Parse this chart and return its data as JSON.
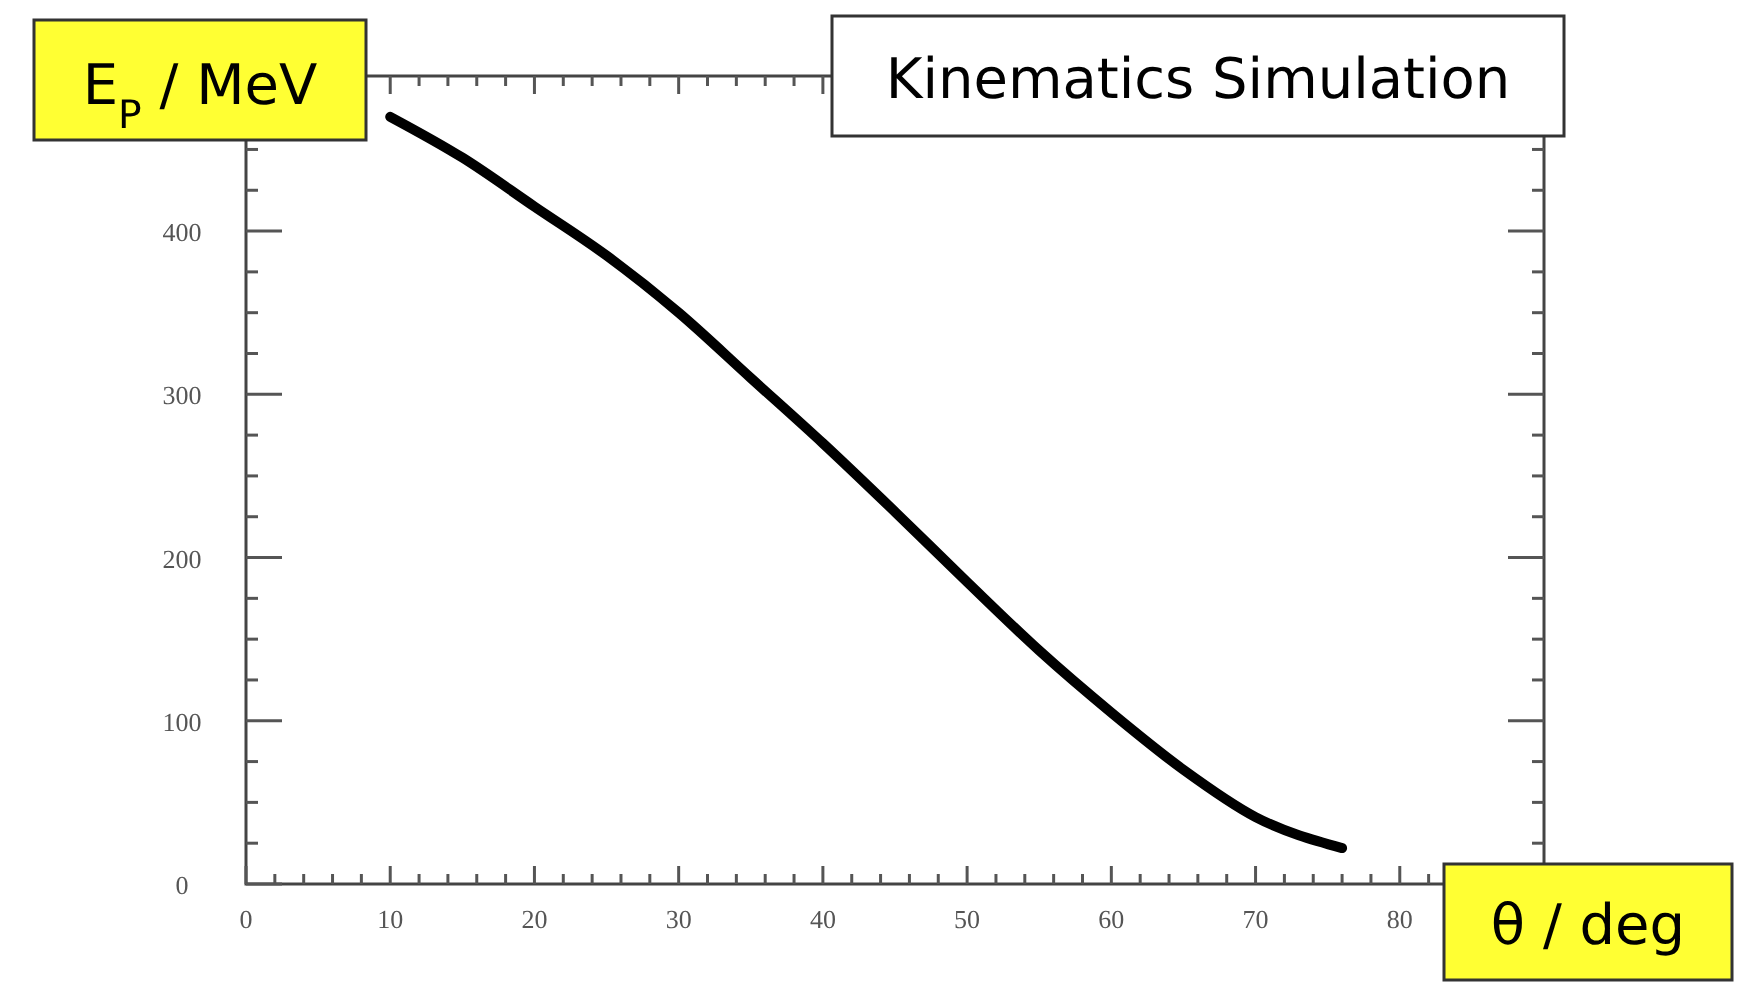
{
  "chart_data": {
    "type": "line",
    "title": "Kinematics Simulation",
    "xlabel": "θ / deg",
    "ylabel": "E$_{P}$ / MeV",
    "xlim": [
      0,
      90
    ],
    "ylim": [
      0,
      495
    ],
    "xticks": [
      0,
      {
        "value": 2,
        "label": null
      },
      {
        "value": 4,
        "label": null
      },
      {
        "value": 6,
        "label": null
      },
      {
        "value": 8,
        "label": null
      },
      10,
      {
        "value": 12,
        "label": null
      },
      {
        "value": 14,
        "label": null
      },
      {
        "value": 16,
        "label": null
      },
      {
        "value": 18,
        "label": null
      },
      20,
      {
        "value": 22,
        "label": null
      },
      {
        "value": 24,
        "label": null
      },
      {
        "value": 26,
        "label": null
      },
      {
        "value": 28,
        "label": null
      },
      30,
      {
        "value": 32,
        "label": null
      },
      {
        "value": 34,
        "label": null
      },
      {
        "value": 36,
        "label": null
      },
      {
        "value": 38,
        "label": null
      },
      40,
      {
        "value": 42,
        "label": null
      },
      {
        "value": 44,
        "label": null
      },
      {
        "value": 46,
        "label": null
      },
      {
        "value": 48,
        "label": null
      },
      50,
      {
        "value": 52,
        "label": null
      },
      {
        "value": 54,
        "label": null
      },
      {
        "value": 56,
        "label": null
      },
      {
        "value": 58,
        "label": null
      },
      60,
      {
        "value": 62,
        "label": null
      },
      {
        "value": 64,
        "label": null
      },
      {
        "value": 66,
        "label": null
      },
      {
        "value": 68,
        "label": null
      },
      70,
      {
        "value": 72,
        "label": null
      },
      {
        "value": 74,
        "label": null
      },
      {
        "value": 76,
        "label": null
      },
      {
        "value": 78,
        "label": null
      },
      80,
      {
        "value": 82,
        "label": null
      },
      {
        "value": 84,
        "label": null
      },
      {
        "value": 86,
        "label": null
      },
      {
        "value": 88,
        "label": null
      }
    ],
    "yticks": [
      0,
      {
        "value": 25,
        "label": null
      },
      {
        "value": 50,
        "label": null
      },
      {
        "value": 75,
        "label": null
      },
      100,
      {
        "value": 125,
        "label": null
      },
      {
        "value": 150,
        "label": null
      },
      {
        "value": 175,
        "label": null
      },
      200,
      {
        "value": 225,
        "label": null
      },
      {
        "value": 250,
        "label": null
      },
      {
        "value": 275,
        "label": null
      },
      300,
      {
        "value": 325,
        "label": null
      },
      {
        "value": 350,
        "label": null
      },
      {
        "value": 375,
        "label": null
      },
      400,
      {
        "value": 425,
        "label": null
      },
      {
        "value": 450,
        "label": null
      },
      {
        "value": 475,
        "label": null
      }
    ],
    "series": [
      {
        "color": "#000000",
        "x": [
          10,
          15,
          20,
          25,
          30,
          35,
          40,
          45,
          50,
          55,
          60,
          65,
          70,
          76
        ],
        "values": [
          470,
          445,
          415,
          385,
          350,
          310,
          270,
          228,
          185,
          143,
          105,
          70,
          41,
          22
        ]
      }
    ],
    "grid": false,
    "marker": "none",
    "line_style": "solid"
  }
}
